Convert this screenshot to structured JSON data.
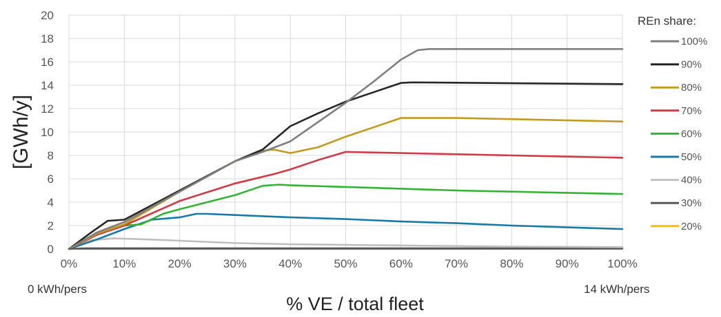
{
  "chart_data": {
    "type": "line",
    "ylabel": "[GWh/y]",
    "xlabel": "% VE / total fleet",
    "x_start_note": "0 kWh/pers",
    "x_end_note": "14 kWh/pers",
    "legend_title": "REn share:",
    "legend_placement": "right",
    "grid": true,
    "xlim": [
      0,
      100
    ],
    "ylim": [
      0,
      20
    ],
    "x_ticks": [
      "0%",
      "10%",
      "20%",
      "30%",
      "40%",
      "50%",
      "60%",
      "70%",
      "80%",
      "90%",
      "100%"
    ],
    "y_ticks": [
      "0",
      "2",
      "4",
      "6",
      "8",
      "10",
      "12",
      "14",
      "16",
      "18",
      "20"
    ],
    "series": [
      {
        "name": "100%",
        "color": "#7f7f7f",
        "x": [
          0,
          5,
          10,
          20,
          30,
          35,
          40,
          50,
          55,
          60,
          63,
          65,
          70,
          100
        ],
        "y": [
          0,
          1.4,
          2.3,
          4.9,
          7.5,
          8.3,
          9.2,
          12.5,
          14.3,
          16.2,
          17.0,
          17.1,
          17.1,
          17.1
        ]
      },
      {
        "name": "90%",
        "color": "#262626",
        "x": [
          0,
          4,
          7,
          10,
          20,
          30,
          35,
          40,
          45,
          50,
          55,
          60,
          62,
          100
        ],
        "y": [
          0,
          1.4,
          2.4,
          2.5,
          5.0,
          7.5,
          8.5,
          10.5,
          11.6,
          12.6,
          13.4,
          14.2,
          14.25,
          14.1
        ]
      },
      {
        "name": "80%",
        "color": "#c49a1c",
        "x": [
          0,
          5,
          10,
          20,
          30,
          35,
          37,
          40,
          45,
          50,
          55,
          60,
          70,
          100
        ],
        "y": [
          0,
          1.3,
          2.1,
          4.9,
          7.5,
          8.4,
          8.5,
          8.2,
          8.7,
          9.6,
          10.4,
          11.2,
          11.2,
          10.9
        ]
      },
      {
        "name": "70%",
        "color": "#d23945",
        "x": [
          0,
          5,
          10,
          20,
          30,
          37,
          40,
          45,
          50,
          60,
          80,
          100
        ],
        "y": [
          0,
          1.2,
          2.0,
          4.1,
          5.6,
          6.4,
          6.8,
          7.6,
          8.3,
          8.2,
          8.0,
          7.8
        ]
      },
      {
        "name": "60%",
        "color": "#2fb52f",
        "x": [
          0,
          5,
          10,
          13,
          17,
          20,
          25,
          30,
          35,
          38,
          40,
          50,
          60,
          70,
          80,
          90,
          100
        ],
        "y": [
          0,
          1.2,
          2.0,
          2.1,
          3.0,
          3.4,
          4.0,
          4.6,
          5.4,
          5.5,
          5.45,
          5.3,
          5.15,
          5.0,
          4.9,
          4.8,
          4.7
        ]
      },
      {
        "name": "50%",
        "color": "#1779a8",
        "x": [
          0,
          5,
          10,
          15,
          20,
          23,
          25,
          30,
          40,
          50,
          60,
          70,
          80,
          90,
          100
        ],
        "y": [
          0,
          0.8,
          1.7,
          2.5,
          2.7,
          3.0,
          3.0,
          2.9,
          2.7,
          2.55,
          2.35,
          2.2,
          2.0,
          1.85,
          1.7
        ]
      },
      {
        "name": "40%",
        "color": "#bfbfbf",
        "x": [
          0,
          4,
          8,
          12,
          15,
          20,
          25,
          30,
          40,
          50,
          60,
          70,
          80,
          90,
          100
        ],
        "y": [
          0,
          0.75,
          0.9,
          0.85,
          0.8,
          0.7,
          0.6,
          0.5,
          0.4,
          0.35,
          0.3,
          0.25,
          0.2,
          0.18,
          0.15
        ]
      },
      {
        "name": "30%",
        "color": "#595959",
        "x": [
          0,
          3,
          10,
          20,
          40,
          60,
          80,
          100
        ],
        "y": [
          0,
          0.05,
          0.05,
          0.05,
          0.05,
          0.05,
          0.05,
          0.05
        ]
      },
      {
        "name": "20%",
        "color": "#ffc000",
        "x": [
          0,
          3,
          10,
          20,
          40,
          60,
          80,
          100
        ],
        "y": [
          0,
          0.02,
          0.02,
          0.02,
          0.02,
          0.02,
          0.02,
          0.02
        ]
      }
    ]
  }
}
